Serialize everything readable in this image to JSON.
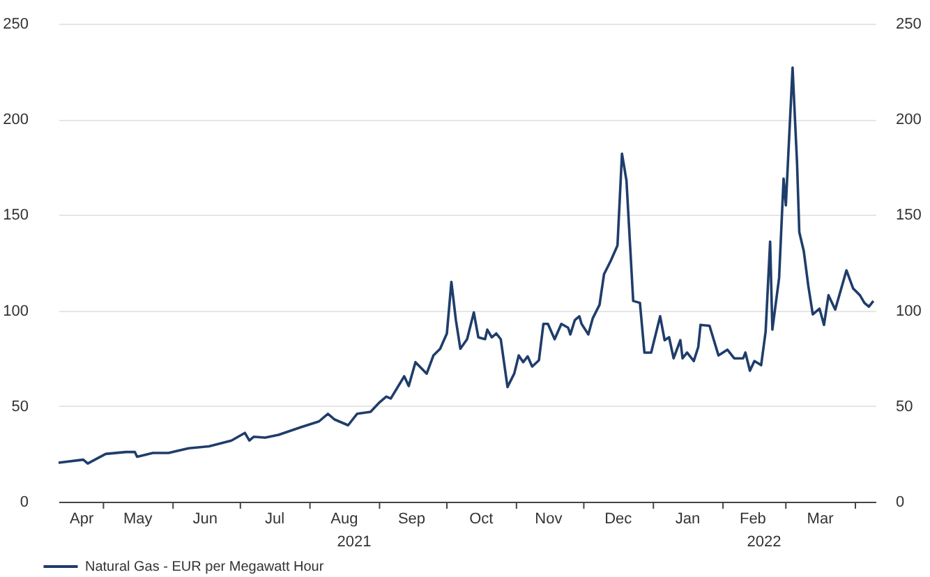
{
  "chart_data": {
    "type": "line",
    "x": [
      "2021-04-11",
      "2021-04-22",
      "2021-04-24",
      "2021-05-02",
      "2021-05-11",
      "2021-05-15",
      "2021-05-16",
      "2021-05-23",
      "2021-05-30",
      "2021-06-08",
      "2021-06-17",
      "2021-06-27",
      "2021-07-03",
      "2021-07-05",
      "2021-07-07",
      "2021-07-12",
      "2021-07-18",
      "2021-07-28",
      "2021-08-05",
      "2021-08-09",
      "2021-08-12",
      "2021-08-18",
      "2021-08-22",
      "2021-08-28",
      "2021-09-01",
      "2021-09-04",
      "2021-09-06",
      "2021-09-12",
      "2021-09-14",
      "2021-09-17",
      "2021-09-22",
      "2021-09-25",
      "2021-09-28",
      "2021-10-01",
      "2021-10-03",
      "2021-10-05",
      "2021-10-07",
      "2021-10-10",
      "2021-10-13",
      "2021-10-15",
      "2021-10-18",
      "2021-10-19",
      "2021-10-21",
      "2021-10-23",
      "2021-10-25",
      "2021-10-28",
      "2021-10-31",
      "2021-11-02",
      "2021-11-04",
      "2021-11-06",
      "2021-11-08",
      "2021-11-11",
      "2021-11-13",
      "2021-11-15",
      "2021-11-18",
      "2021-11-21",
      "2021-11-24",
      "2021-11-25",
      "2021-11-27",
      "2021-11-29",
      "2021-11-30",
      "2021-12-03",
      "2021-12-05",
      "2021-12-08",
      "2021-12-10",
      "2021-12-13",
      "2021-12-16",
      "2021-12-18",
      "2021-12-20",
      "2021-12-23",
      "2021-12-26",
      "2021-12-28",
      "2021-12-31",
      "2022-01-04",
      "2022-01-06",
      "2022-01-08",
      "2022-01-10",
      "2022-01-13",
      "2022-01-14",
      "2022-01-16",
      "2022-01-19",
      "2022-01-21",
      "2022-01-22",
      "2022-01-26",
      "2022-01-30",
      "2022-02-03",
      "2022-02-06",
      "2022-02-10",
      "2022-02-11",
      "2022-02-13",
      "2022-02-15",
      "2022-02-18",
      "2022-02-20",
      "2022-02-22",
      "2022-02-23",
      "2022-02-26",
      "2022-02-28",
      "2022-03-01",
      "2022-03-04",
      "2022-03-06",
      "2022-03-07",
      "2022-03-09",
      "2022-03-11",
      "2022-03-13",
      "2022-03-16",
      "2022-03-18",
      "2022-03-20",
      "2022-03-23",
      "2022-03-28",
      "2022-03-31",
      "2022-04-03",
      "2022-04-05",
      "2022-04-07",
      "2022-04-09"
    ],
    "series": [
      {
        "name": "Natural Gas - EUR per Megawatt Hour",
        "color": "#1f3d6b",
        "values": [
          20.4,
          22,
          20,
          25,
          26,
          26,
          23.5,
          25.5,
          25.5,
          28,
          29,
          32,
          36,
          32,
          34,
          33.5,
          35,
          39,
          42,
          46,
          43,
          40,
          46,
          47,
          52,
          55,
          54,
          65.6,
          60.5,
          73,
          67,
          76.5,
          80,
          88,
          115,
          95,
          80,
          85,
          99,
          86,
          85,
          90,
          86,
          88,
          85,
          60,
          67,
          76.5,
          73,
          76,
          70.7,
          74,
          93,
          93,
          85,
          93,
          91,
          87.5,
          95,
          97,
          93,
          87.5,
          96,
          103,
          119,
          126,
          134,
          182,
          168,
          105,
          104,
          78,
          78,
          97,
          84.5,
          86,
          75,
          84.5,
          75,
          78,
          73.6,
          81,
          92.5,
          92,
          76.5,
          79.5,
          75,
          75,
          78,
          68.5,
          73.6,
          71.4,
          89,
          136,
          90,
          117,
          169,
          155,
          227,
          177,
          141,
          131,
          113,
          98,
          101,
          92.5,
          108,
          100.5,
          121,
          111.5,
          108,
          104,
          102,
          105
        ]
      }
    ],
    "xlim": [
      "2021-04-11",
      "2022-04-10"
    ],
    "xticks": [
      {
        "value": "2021-04-21",
        "label": "Apr"
      },
      {
        "value": "2021-05-16",
        "label": "May"
      },
      {
        "value": "2021-06-15",
        "label": "Jun"
      },
      {
        "value": "2021-07-16",
        "label": "Jul"
      },
      {
        "value": "2021-08-16",
        "label": "Aug"
      },
      {
        "value": "2021-09-15",
        "label": "Sep"
      },
      {
        "value": "2021-10-16",
        "label": "Oct"
      },
      {
        "value": "2021-11-15",
        "label": "Nov"
      },
      {
        "value": "2021-12-16",
        "label": "Dec"
      },
      {
        "value": "2022-01-16",
        "label": "Jan"
      },
      {
        "value": "2022-02-14",
        "label": "Feb"
      },
      {
        "value": "2022-03-16",
        "label": "Mar"
      },
      {
        "value": "2021-05-01",
        "label": null
      },
      {
        "value": "2021-06-01",
        "label": null
      },
      {
        "value": "2021-07-01",
        "label": null
      },
      {
        "value": "2021-08-01",
        "label": null
      },
      {
        "value": "2021-09-01",
        "label": null
      },
      {
        "value": "2021-10-01",
        "label": null
      },
      {
        "value": "2021-11-01",
        "label": null
      },
      {
        "value": "2021-12-01",
        "label": null
      },
      {
        "value": "2022-01-01",
        "label": null
      },
      {
        "value": "2022-02-01",
        "label": null
      },
      {
        "value": "2022-03-01",
        "label": null
      },
      {
        "value": "2022-04-01",
        "label": null
      }
    ],
    "ylim": [
      0,
      250
    ],
    "yticks": [
      0,
      50,
      100,
      150,
      200,
      250
    ],
    "y2lim": [
      0,
      250
    ],
    "y2ticks": [
      0,
      50,
      100,
      150,
      200,
      250
    ],
    "annotations": [
      "2021",
      "2022"
    ],
    "grid": "y",
    "legend": "bottom left",
    "line_style": "solid",
    "marker": "none"
  }
}
